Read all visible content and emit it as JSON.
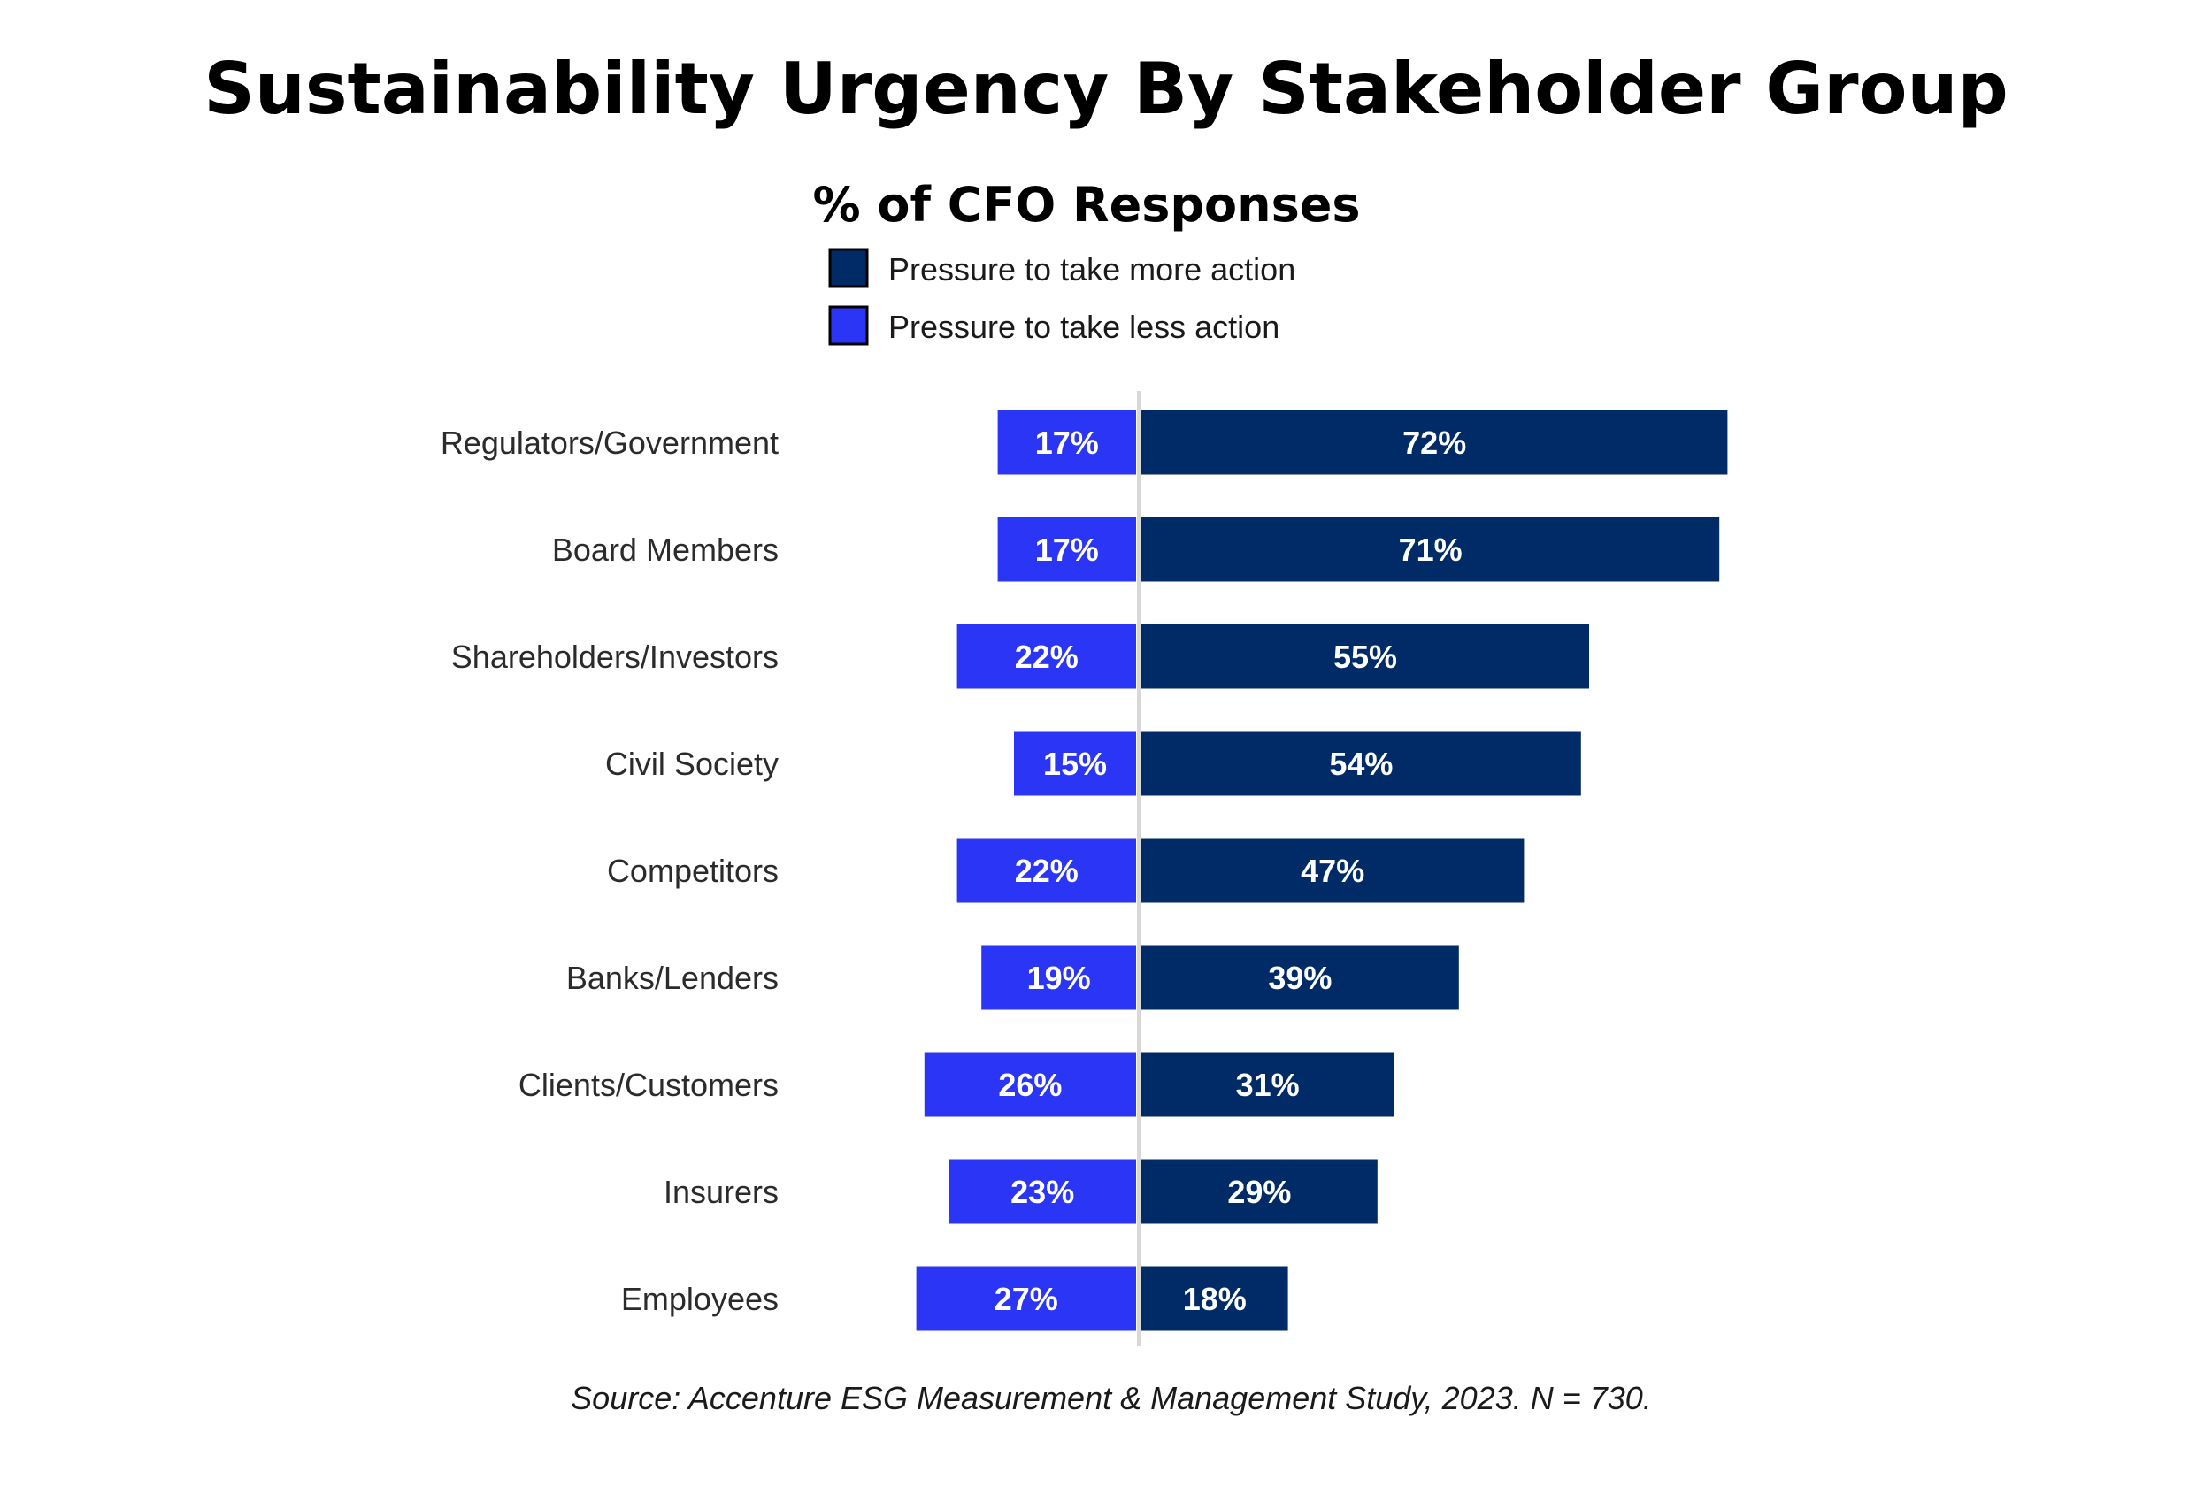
{
  "chart_data": {
    "type": "bar",
    "orientation": "horizontal-diverging",
    "title": "Sustainability Urgency By Stakeholder Group",
    "subtitle": "% of CFO Responses",
    "categories": [
      "Regulators/Government",
      "Board Members",
      "Shareholders/Investors",
      "Civil Society",
      "Competitors",
      "Banks/Lenders",
      "Clients/Customers",
      "Insurers",
      "Employees"
    ],
    "series": [
      {
        "name": "Pressure to take more action",
        "color": "#002B66",
        "values": [
          72,
          71,
          55,
          54,
          47,
          39,
          31,
          29,
          18
        ],
        "labels": [
          "72%",
          "71%",
          "55%",
          "54%",
          "47%",
          "39%",
          "31%",
          "29%",
          "18%"
        ]
      },
      {
        "name": "Pressure to take less action",
        "color": "#2B35F5",
        "values": [
          17,
          17,
          22,
          15,
          22,
          19,
          26,
          23,
          27
        ],
        "labels": [
          "17%",
          "17%",
          "22%",
          "15%",
          "22%",
          "19%",
          "26%",
          "23%",
          "27%"
        ]
      }
    ],
    "legend": "top-center",
    "grid": false,
    "source": "Source:  Accenture ESG Measurement & Management Study, 2023.  N = 730."
  }
}
